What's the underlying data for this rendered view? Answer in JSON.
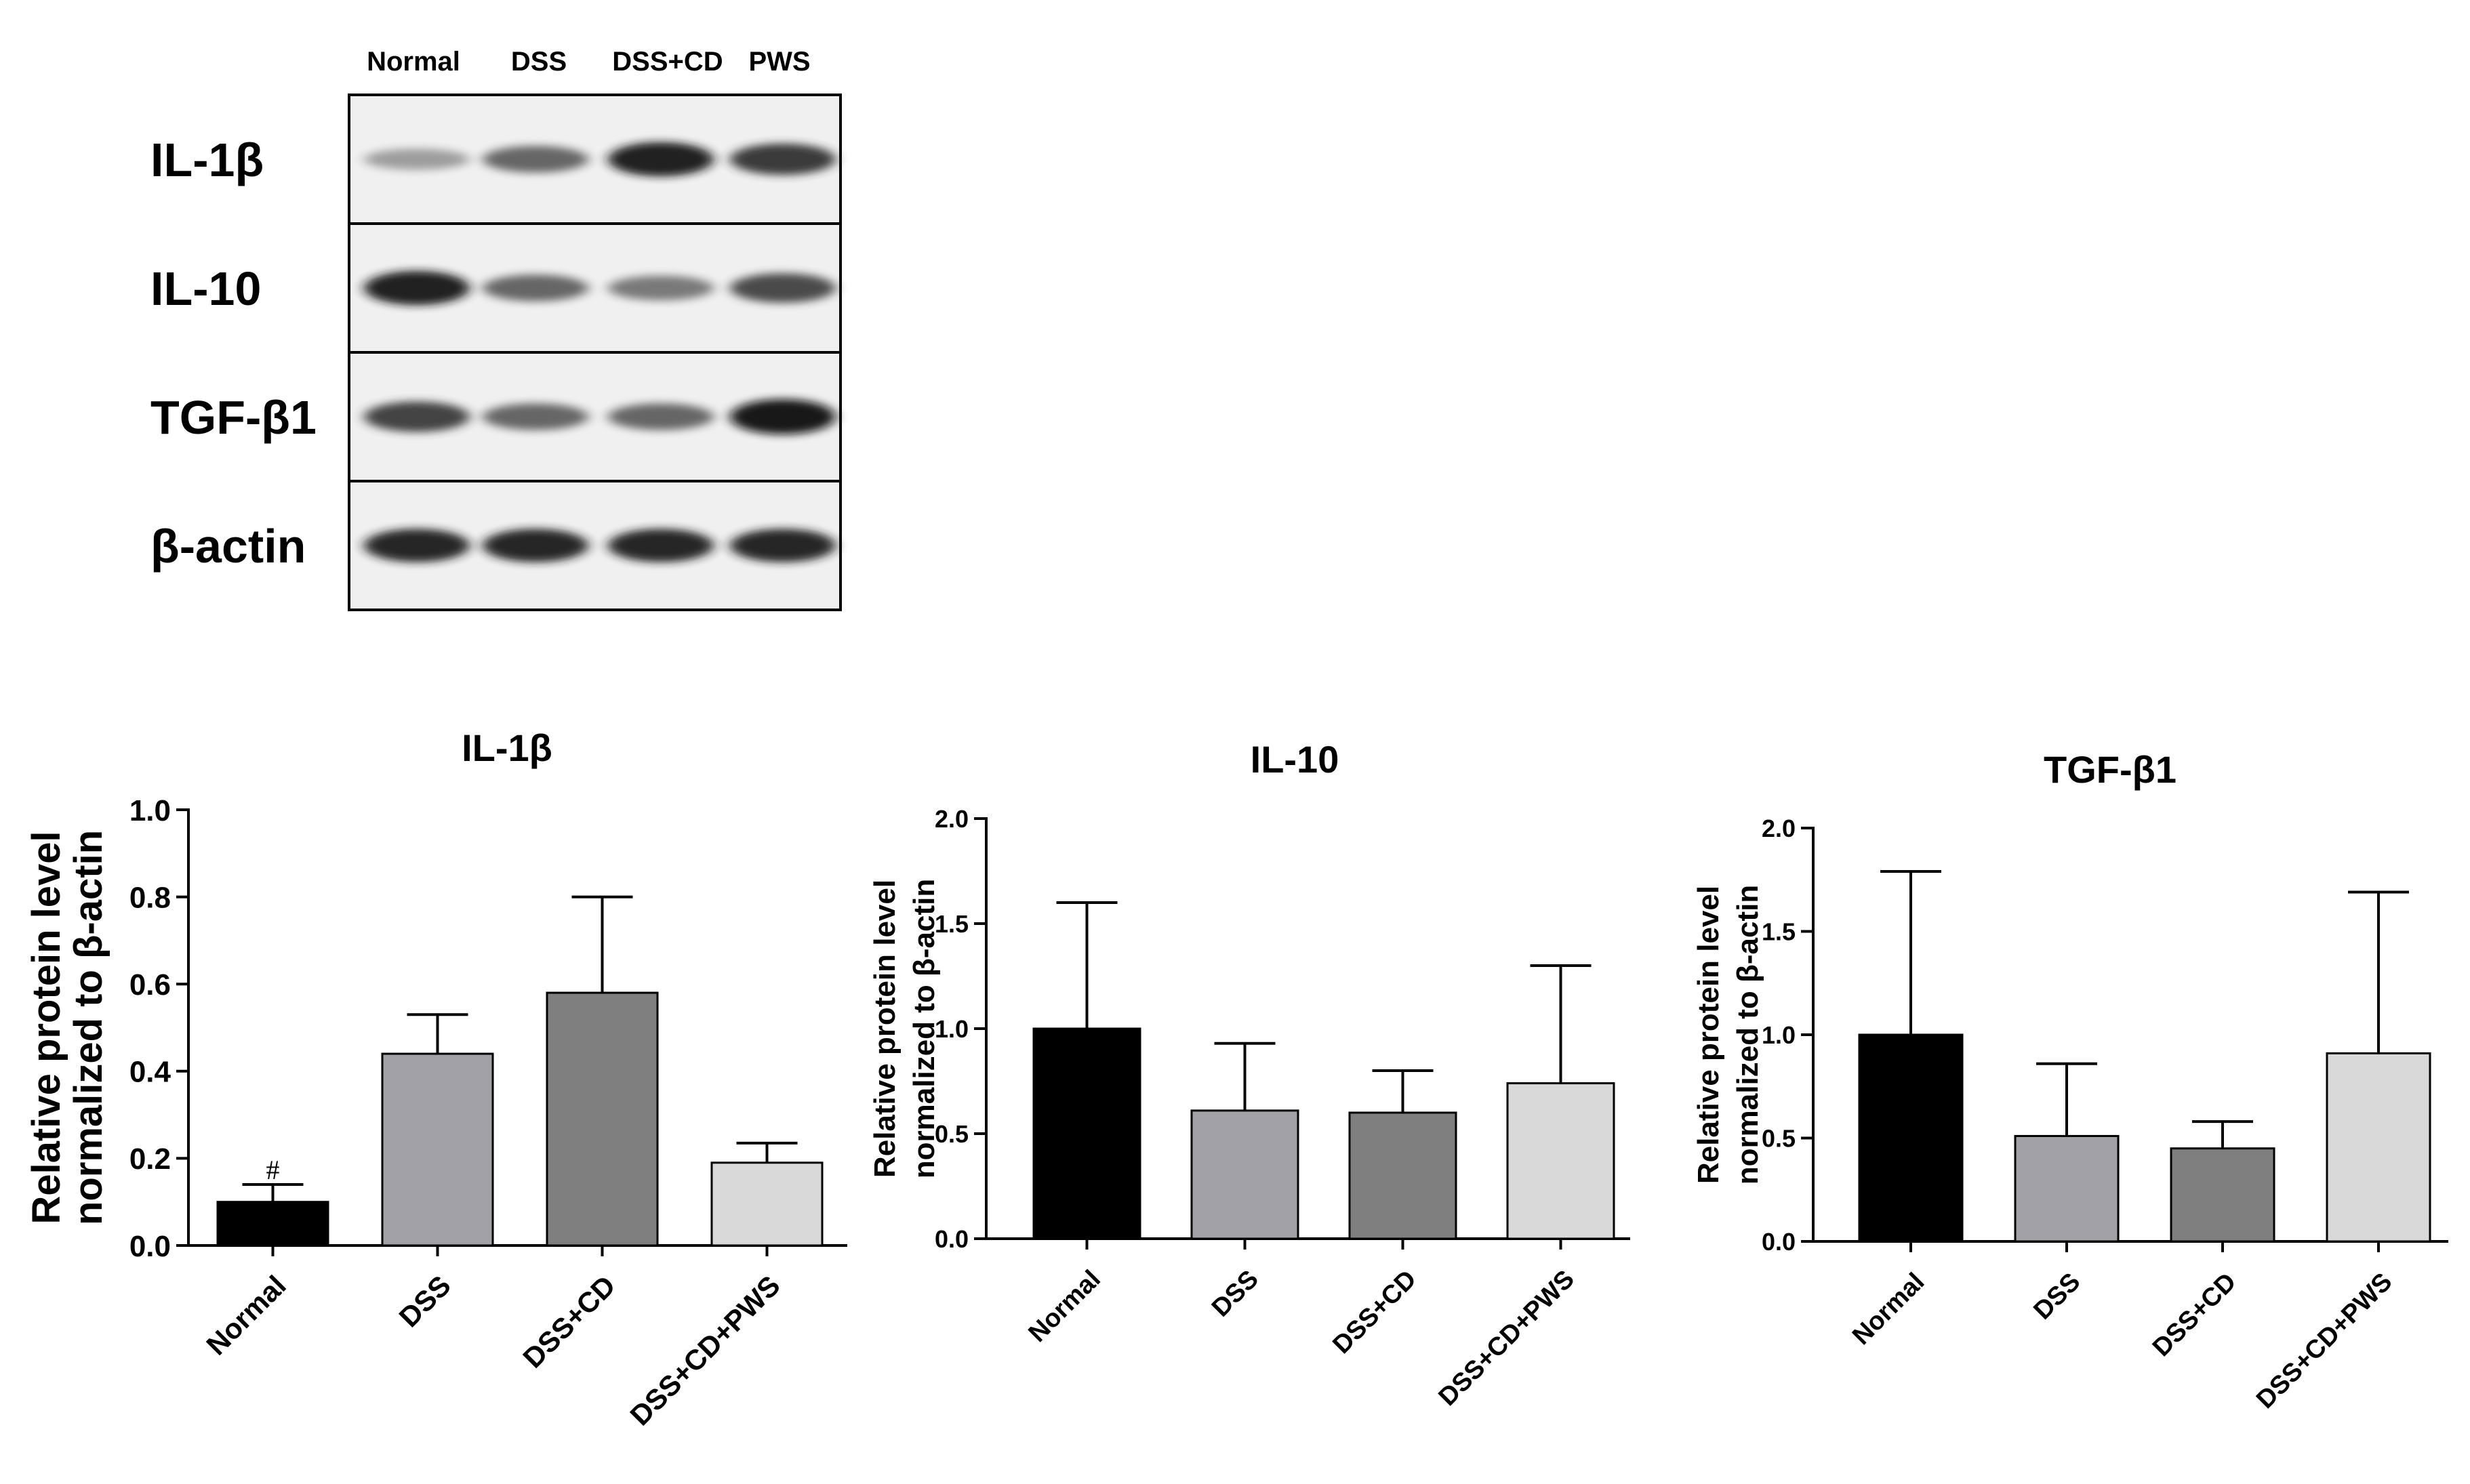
{
  "blot": {
    "lane_labels": [
      "Normal",
      "DSS",
      "DSS+CD",
      "PWS"
    ],
    "proteins": [
      {
        "name": "IL-1β",
        "intensity": [
          0.25,
          0.55,
          0.95,
          0.8
        ]
      },
      {
        "name": "IL-10",
        "intensity": [
          0.95,
          0.55,
          0.45,
          0.7
        ]
      },
      {
        "name": "TGF-β1",
        "intensity": [
          0.75,
          0.55,
          0.55,
          1.0
        ]
      },
      {
        "name": "β-actin",
        "intensity": [
          0.9,
          0.9,
          0.9,
          0.9
        ]
      }
    ]
  },
  "chart_data": [
    {
      "type": "bar",
      "title": "IL-1β",
      "ylabel": [
        "Relative protein level",
        "normalized to β-actin"
      ],
      "categories": [
        "Normal",
        "DSS",
        "DSS+CD",
        "DSS+CD+PWS"
      ],
      "values": [
        0.1,
        0.44,
        0.58,
        0.19
      ],
      "errors": [
        0.04,
        0.09,
        0.22,
        0.045
      ],
      "ylim": [
        0,
        1.0
      ],
      "yticks": [
        "0.0",
        "0.2",
        "0.4",
        "0.6",
        "0.8",
        "1.0"
      ],
      "annotations": [
        "#",
        "",
        "",
        ""
      ],
      "colors": [
        "#000000",
        "#a3a1a8",
        "#7f7f7f",
        "#d9d9d9"
      ],
      "grid": false
    },
    {
      "type": "bar",
      "title": "IL-10",
      "ylabel": [
        "Relative protein level",
        "normalized to β-actin"
      ],
      "categories": [
        "Normal",
        "DSS",
        "DSS+CD",
        "DSS+CD+PWS"
      ],
      "values": [
        1.0,
        0.61,
        0.6,
        0.74
      ],
      "errors": [
        0.6,
        0.32,
        0.2,
        0.56
      ],
      "ylim": [
        0,
        2.0
      ],
      "yticks": [
        "0.0",
        "0.5",
        "1.0",
        "1.5",
        "2.0"
      ],
      "annotations": [
        "",
        "",
        "",
        ""
      ],
      "colors": [
        "#000000",
        "#a3a1a8",
        "#7f7f7f",
        "#d9d9d9"
      ],
      "grid": false
    },
    {
      "type": "bar",
      "title": "TGF-β1",
      "ylabel": [
        "Relative protein level",
        "normalized to β-actin"
      ],
      "categories": [
        "Normal",
        "DSS",
        "DSS+CD",
        "DSS+CD+PWS"
      ],
      "values": [
        1.0,
        0.51,
        0.45,
        0.91
      ],
      "errors": [
        0.79,
        0.35,
        0.13,
        0.78
      ],
      "ylim": [
        0,
        2.0
      ],
      "yticks": [
        "0.0",
        "0.5",
        "1.0",
        "1.5",
        "2.0"
      ],
      "annotations": [
        "",
        "",
        "",
        ""
      ],
      "colors": [
        "#000000",
        "#a3a1a8",
        "#7f7f7f",
        "#d9d9d9"
      ],
      "grid": false
    }
  ]
}
